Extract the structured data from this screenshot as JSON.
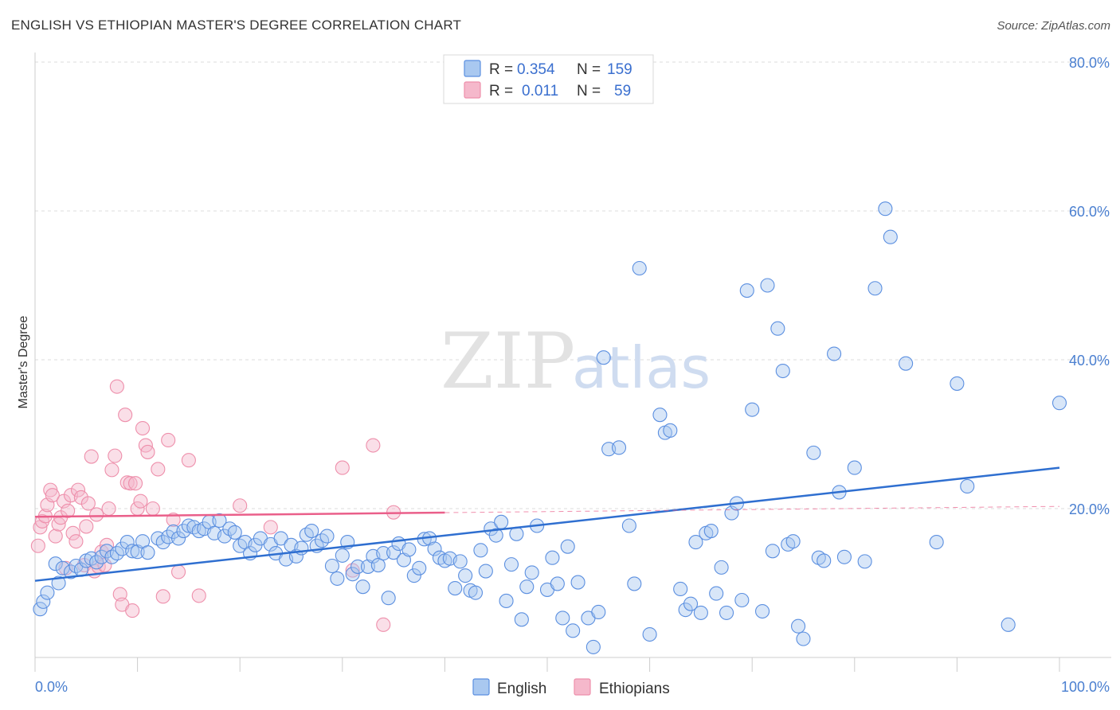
{
  "title": "ENGLISH VS ETHIOPIAN MASTER'S DEGREE CORRELATION CHART",
  "source": "Source: ZipAtlas.com",
  "watermark": {
    "part1": "ZIP",
    "part2": "atlas"
  },
  "legend_top": [
    {
      "r_label": "R =",
      "r_value": "0.354",
      "n_label": "N =",
      "n_value": "159",
      "color": "#a9c8f0"
    },
    {
      "r_label": "R =",
      "r_value": "0.011",
      "n_label": "N =",
      "n_value": "59",
      "color": "#f5b8cb"
    }
  ],
  "legend_bottom": [
    {
      "label": "English",
      "color": "#a9c8f0"
    },
    {
      "label": "Ethiopians",
      "color": "#f5b8cb"
    }
  ],
  "chart_data": {
    "type": "scatter",
    "title": "ENGLISH VS ETHIOPIAN MASTER'S DEGREE CORRELATION CHART",
    "xlabel": "",
    "ylabel": "Master's Degree",
    "xlim": [
      0,
      100
    ],
    "ylim": [
      0,
      80
    ],
    "x_tick_labels": [
      "0.0%",
      "100.0%"
    ],
    "y_ticks": [
      20,
      40,
      60,
      80
    ],
    "y_tick_labels": [
      "20.0%",
      "40.0%",
      "60.0%",
      "80.0%"
    ],
    "grid": true,
    "colors": {
      "english": "#5b8fe0",
      "english_fill": "#a9c8f0",
      "english_line": "#2f6fd0",
      "ethiopians": "#ee8fab",
      "ethiopians_fill": "#f5b8cb",
      "ethiopians_line": "#ea5f8a"
    },
    "series": [
      {
        "name": "English",
        "points": [
          [
            0.5,
            6.5
          ],
          [
            0.8,
            7.5
          ],
          [
            1.2,
            8.7
          ],
          [
            2,
            12.6
          ],
          [
            2.3,
            10
          ],
          [
            2.7,
            12
          ],
          [
            3.5,
            11.5
          ],
          [
            4,
            12.3
          ],
          [
            4.5,
            11.8
          ],
          [
            5,
            13
          ],
          [
            5.5,
            13.3
          ],
          [
            6,
            12.8
          ],
          [
            6.5,
            13.5
          ],
          [
            7,
            14.3
          ],
          [
            7.5,
            13.5
          ],
          [
            8,
            14
          ],
          [
            8.5,
            14.6
          ],
          [
            9,
            15.5
          ],
          [
            9.5,
            14.3
          ],
          [
            10,
            14.2
          ],
          [
            10.5,
            15.6
          ],
          [
            11,
            14.1
          ],
          [
            12,
            16
          ],
          [
            12.5,
            15.5
          ],
          [
            13,
            16.2
          ],
          [
            13.5,
            16.9
          ],
          [
            14,
            16
          ],
          [
            14.5,
            17
          ],
          [
            15,
            17.7
          ],
          [
            15.5,
            17.5
          ],
          [
            16,
            17
          ],
          [
            16.5,
            17.3
          ],
          [
            17,
            18.2
          ],
          [
            17.5,
            16.7
          ],
          [
            18,
            18.4
          ],
          [
            18.5,
            16.3
          ],
          [
            19,
            17.3
          ],
          [
            19.5,
            16.8
          ],
          [
            20,
            15
          ],
          [
            20.5,
            15.5
          ],
          [
            21,
            14
          ],
          [
            21.5,
            15.1
          ],
          [
            22,
            16
          ],
          [
            23,
            15.2
          ],
          [
            23.5,
            14
          ],
          [
            24,
            16
          ],
          [
            24.5,
            13.2
          ],
          [
            25,
            15.1
          ],
          [
            25.5,
            13.6
          ],
          [
            26,
            14.7
          ],
          [
            26.5,
            16.5
          ],
          [
            27,
            17
          ],
          [
            27.5,
            15
          ],
          [
            28,
            15.7
          ],
          [
            28.5,
            16.3
          ],
          [
            29,
            12.3
          ],
          [
            29.5,
            10.6
          ],
          [
            30,
            13.7
          ],
          [
            30.5,
            15.5
          ],
          [
            31,
            11.2
          ],
          [
            31.5,
            12.2
          ],
          [
            32,
            9.5
          ],
          [
            32.5,
            12.2
          ],
          [
            33,
            13.6
          ],
          [
            33.5,
            12.4
          ],
          [
            34,
            14
          ],
          [
            34.5,
            8
          ],
          [
            35,
            14.1
          ],
          [
            35.5,
            15.3
          ],
          [
            36,
            13.1
          ],
          [
            36.5,
            14.5
          ],
          [
            37,
            11
          ],
          [
            37.5,
            12
          ],
          [
            38,
            15.9
          ],
          [
            38.5,
            16
          ],
          [
            39,
            14.6
          ],
          [
            39.5,
            13.4
          ],
          [
            40,
            13
          ],
          [
            40.5,
            13.3
          ],
          [
            41,
            9.3
          ],
          [
            41.5,
            12.9
          ],
          [
            42,
            11
          ],
          [
            42.5,
            9
          ],
          [
            43,
            8.7
          ],
          [
            43.5,
            14.4
          ],
          [
            44,
            11.6
          ],
          [
            44.5,
            17.3
          ],
          [
            45,
            16.4
          ],
          [
            45.5,
            18.2
          ],
          [
            46,
            7.6
          ],
          [
            46.5,
            12.5
          ],
          [
            47,
            16.6
          ],
          [
            47.5,
            5.1
          ],
          [
            48,
            9.5
          ],
          [
            48.5,
            11.4
          ],
          [
            49,
            17.7
          ],
          [
            50,
            9.1
          ],
          [
            50.5,
            13.4
          ],
          [
            51,
            9.9
          ],
          [
            51.5,
            5.3
          ],
          [
            52,
            14.9
          ],
          [
            52.5,
            3.6
          ],
          [
            53,
            10.1
          ],
          [
            54,
            5.3
          ],
          [
            54.5,
            1.4
          ],
          [
            55,
            6.1
          ],
          [
            55.5,
            40.3
          ],
          [
            56,
            28
          ],
          [
            57,
            28.2
          ],
          [
            58,
            17.7
          ],
          [
            58.5,
            9.9
          ],
          [
            59,
            52.3
          ],
          [
            60,
            3.1
          ],
          [
            61,
            32.6
          ],
          [
            61.5,
            30.2
          ],
          [
            62,
            30.5
          ],
          [
            63,
            9.2
          ],
          [
            63.5,
            6.4
          ],
          [
            64,
            7.2
          ],
          [
            64.5,
            15.5
          ],
          [
            65,
            6
          ],
          [
            65.5,
            16.7
          ],
          [
            66,
            17
          ],
          [
            66.5,
            8.6
          ],
          [
            67,
            12.1
          ],
          [
            67.5,
            6
          ],
          [
            68,
            19.4
          ],
          [
            68.5,
            20.7
          ],
          [
            69,
            7.7
          ],
          [
            69.5,
            49.3
          ],
          [
            70,
            33.3
          ],
          [
            71,
            6.2
          ],
          [
            71.5,
            50
          ],
          [
            72,
            14.3
          ],
          [
            72.5,
            44.2
          ],
          [
            73,
            38.5
          ],
          [
            73.5,
            15.2
          ],
          [
            74,
            15.6
          ],
          [
            74.5,
            4.2
          ],
          [
            75,
            2.5
          ],
          [
            76,
            27.5
          ],
          [
            76.5,
            13.4
          ],
          [
            77,
            13
          ],
          [
            78,
            40.8
          ],
          [
            78.5,
            22.2
          ],
          [
            79,
            13.5
          ],
          [
            80,
            25.5
          ],
          [
            81,
            12.9
          ],
          [
            82,
            49.6
          ],
          [
            83,
            60.3
          ],
          [
            83.5,
            56.5
          ],
          [
            85,
            39.5
          ],
          [
            88,
            15.5
          ],
          [
            90,
            36.8
          ],
          [
            91,
            23
          ],
          [
            95,
            4.4
          ],
          [
            100,
            34.2
          ]
        ]
      },
      {
        "name": "Ethiopians",
        "points": [
          [
            0.3,
            15
          ],
          [
            0.5,
            17.5
          ],
          [
            0.7,
            18.3
          ],
          [
            1,
            19
          ],
          [
            1.2,
            20.5
          ],
          [
            1.5,
            22.5
          ],
          [
            1.7,
            21.8
          ],
          [
            2,
            16.3
          ],
          [
            2.3,
            17.9
          ],
          [
            2.5,
            18.8
          ],
          [
            2.8,
            21
          ],
          [
            3,
            12
          ],
          [
            3.2,
            19.7
          ],
          [
            3.5,
            21.8
          ],
          [
            3.7,
            16.7
          ],
          [
            4,
            15.6
          ],
          [
            4.2,
            22.5
          ],
          [
            4.5,
            21.5
          ],
          [
            4.8,
            12.4
          ],
          [
            5,
            17.6
          ],
          [
            5.2,
            20.7
          ],
          [
            5.5,
            27
          ],
          [
            5.8,
            11.6
          ],
          [
            6,
            19.2
          ],
          [
            6.2,
            12.2
          ],
          [
            6.5,
            14.2
          ],
          [
            6.8,
            12.4
          ],
          [
            7,
            15.1
          ],
          [
            7.2,
            20
          ],
          [
            7.5,
            25.2
          ],
          [
            7.8,
            27.1
          ],
          [
            8,
            36.4
          ],
          [
            8.3,
            8.5
          ],
          [
            8.5,
            7.1
          ],
          [
            8.8,
            32.6
          ],
          [
            9,
            23.5
          ],
          [
            9.3,
            23.4
          ],
          [
            9.5,
            6.3
          ],
          [
            9.8,
            23.4
          ],
          [
            10,
            20
          ],
          [
            10.3,
            21
          ],
          [
            10.5,
            30.8
          ],
          [
            10.8,
            28.5
          ],
          [
            11,
            27.6
          ],
          [
            11.5,
            20
          ],
          [
            12,
            25.3
          ],
          [
            12.5,
            8.2
          ],
          [
            13,
            29.2
          ],
          [
            13.5,
            18.5
          ],
          [
            14,
            11.5
          ],
          [
            15,
            26.5
          ],
          [
            16,
            8.3
          ],
          [
            20,
            20.4
          ],
          [
            23,
            17.5
          ],
          [
            30,
            25.5
          ],
          [
            31,
            11.7
          ],
          [
            33,
            28.5
          ],
          [
            34,
            4.4
          ],
          [
            35,
            19.5
          ]
        ]
      }
    ],
    "trendlines": [
      {
        "series": "English",
        "x": [
          0,
          100
        ],
        "y": [
          10.3,
          25.5
        ]
      },
      {
        "series": "Ethiopians",
        "x": [
          0,
          100
        ],
        "y": [
          18.9,
          20.3
        ]
      }
    ]
  }
}
